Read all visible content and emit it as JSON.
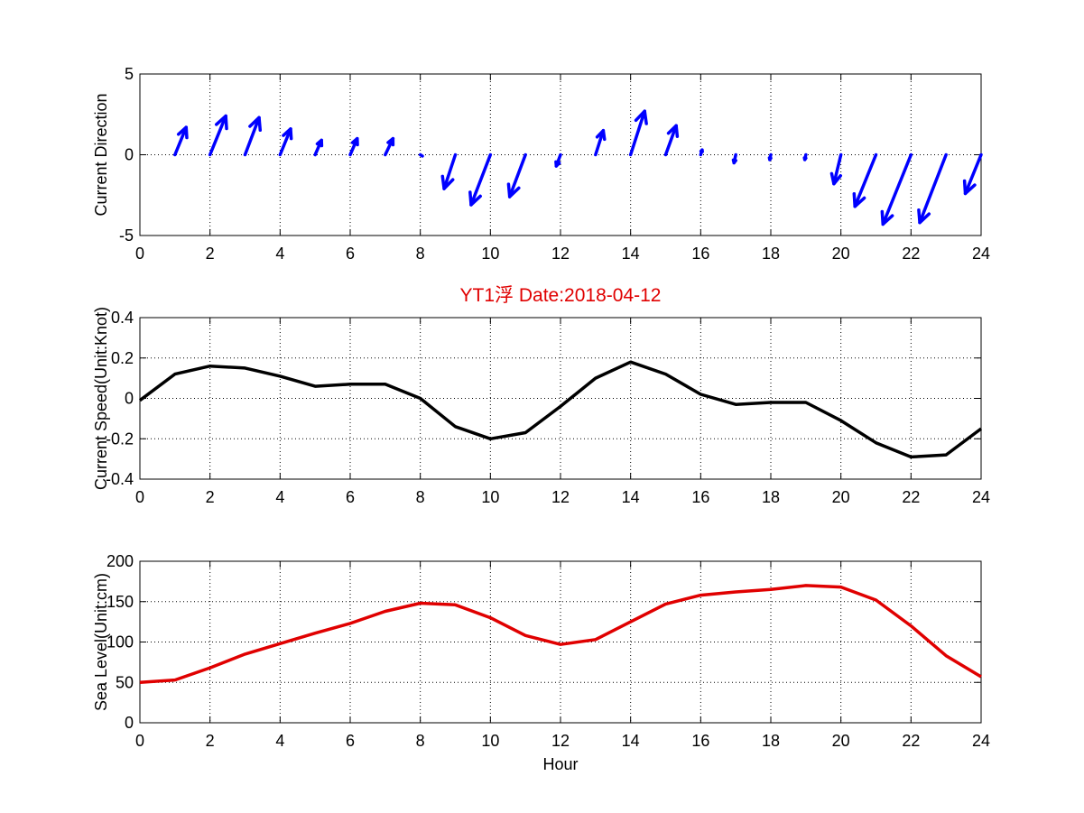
{
  "figure": {
    "title": "YT1浮   Date:2018-04-12",
    "title_color": "#e00000"
  },
  "chart_data": [
    {
      "id": "direction",
      "type": "quiver",
      "title": "",
      "xlabel": "",
      "ylabel": "Current Direction",
      "xlim": [
        0,
        24
      ],
      "ylim": [
        -5,
        5
      ],
      "xticks": [
        0,
        2,
        4,
        6,
        8,
        10,
        12,
        14,
        16,
        18,
        20,
        22,
        24
      ],
      "yticks": [
        -5,
        0,
        5
      ],
      "grid": true,
      "color": "#0000ff",
      "series": [
        {
          "x": [
            1,
            2,
            3,
            4,
            5,
            6,
            7,
            8,
            9,
            10,
            11,
            12,
            13,
            14,
            15,
            16,
            17,
            18,
            19,
            20,
            21,
            22,
            23,
            24
          ],
          "u": [
            0.32,
            0.45,
            0.4,
            0.3,
            0.18,
            0.2,
            0.22,
            0.06,
            -0.32,
            -0.55,
            -0.45,
            -0.12,
            0.22,
            0.4,
            0.3,
            0.04,
            -0.05,
            -0.03,
            -0.03,
            -0.2,
            -0.6,
            -0.8,
            -0.75,
            -0.45
          ],
          "v": [
            1.7,
            2.4,
            2.3,
            1.6,
            0.9,
            1.0,
            1.0,
            -0.08,
            -2.1,
            -3.1,
            -2.6,
            -0.7,
            1.5,
            2.7,
            1.8,
            0.3,
            -0.5,
            -0.3,
            -0.3,
            -1.8,
            -3.2,
            -4.3,
            -4.2,
            -2.4
          ]
        }
      ]
    },
    {
      "id": "speed",
      "type": "line",
      "title": "YT1浮   Date:2018-04-12",
      "xlabel": "",
      "ylabel": "Current Speed(Unit:Knot)",
      "xlim": [
        0,
        24
      ],
      "ylim": [
        -0.4,
        0.4
      ],
      "xticks": [
        0,
        2,
        4,
        6,
        8,
        10,
        12,
        14,
        16,
        18,
        20,
        22,
        24
      ],
      "yticks": [
        -0.4,
        -0.2,
        0,
        0.2,
        0.4
      ],
      "grid": true,
      "color": "#000000",
      "series": [
        {
          "x": [
            0,
            1,
            2,
            3,
            4,
            5,
            6,
            7,
            8,
            9,
            10,
            11,
            12,
            13,
            14,
            15,
            16,
            17,
            18,
            19,
            20,
            21,
            22,
            23,
            24
          ],
          "y": [
            -0.01,
            0.12,
            0.16,
            0.15,
            0.11,
            0.06,
            0.07,
            0.07,
            0.0,
            -0.14,
            -0.2,
            -0.17,
            -0.04,
            0.1,
            0.18,
            0.12,
            0.02,
            -0.03,
            -0.02,
            -0.02,
            -0.11,
            -0.22,
            -0.29,
            -0.28,
            -0.15
          ]
        }
      ]
    },
    {
      "id": "sealevel",
      "type": "line",
      "title": "",
      "xlabel": "Hour",
      "ylabel": "Sea Level(Unit:cm)",
      "xlim": [
        0,
        24
      ],
      "ylim": [
        0,
        200
      ],
      "xticks": [
        0,
        2,
        4,
        6,
        8,
        10,
        12,
        14,
        16,
        18,
        20,
        22,
        24
      ],
      "yticks": [
        0,
        50,
        100,
        150,
        200
      ],
      "grid": true,
      "color": "#e00000",
      "series": [
        {
          "x": [
            0,
            1,
            2,
            3,
            4,
            5,
            6,
            7,
            8,
            9,
            10,
            11,
            12,
            13,
            14,
            15,
            16,
            17,
            18,
            19,
            20,
            21,
            22,
            23,
            24
          ],
          "y": [
            50,
            53,
            68,
            85,
            98,
            111,
            123,
            138,
            148,
            146,
            130,
            108,
            97,
            103,
            125,
            147,
            158,
            162,
            165,
            170,
            168,
            152,
            120,
            83,
            57
          ]
        }
      ]
    }
  ]
}
